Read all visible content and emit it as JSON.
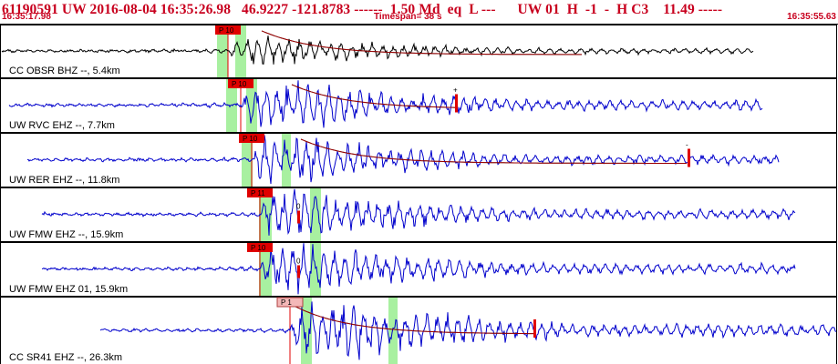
{
  "header": {
    "title": "61190591 UW 2016-08-04 16:35:26.98   46.9227 -121.8783 ------  1.50 Md  eq  L ---      UW 01  H  -1  -  H C3    11.49 -----",
    "time_left": "16:35:17.98",
    "timespan": "Timespan=  38 s",
    "time_right": "16:35:55.63"
  },
  "colors": {
    "header_text": "#c8001e",
    "trace_black": "#000000",
    "trace_blue": "#0000cc",
    "pick_red": "#e00000",
    "window_green": "#a8f0a0",
    "coda_red": "#e00000"
  },
  "panels": [
    {
      "label": "CC OBSR BHZ --, 5.4km",
      "pick": "P 10",
      "color": "black",
      "pick_style": "red"
    },
    {
      "label": "UW RVC EHZ --, 7.7km",
      "pick": "P 10",
      "color": "blue",
      "pick_style": "red",
      "coda_mark": "+"
    },
    {
      "label": "UW RER EHZ --, 11.8km",
      "pick": "P 10",
      "color": "blue",
      "pick_style": "red",
      "coda_mark": "-"
    },
    {
      "label": "UW FMW EHZ --, 15.9km",
      "pick": "P 11",
      "color": "blue",
      "pick_style": "red",
      "amp_mark": "0"
    },
    {
      "label": "UW FMW EHZ 01, 15.9km",
      "pick": "P 10",
      "color": "blue",
      "pick_style": "red",
      "amp_mark": "0"
    },
    {
      "label": "CC SR41 EHZ --, 26.3km",
      "pick": "P 1",
      "color": "blue",
      "pick_style": "pink"
    }
  ]
}
